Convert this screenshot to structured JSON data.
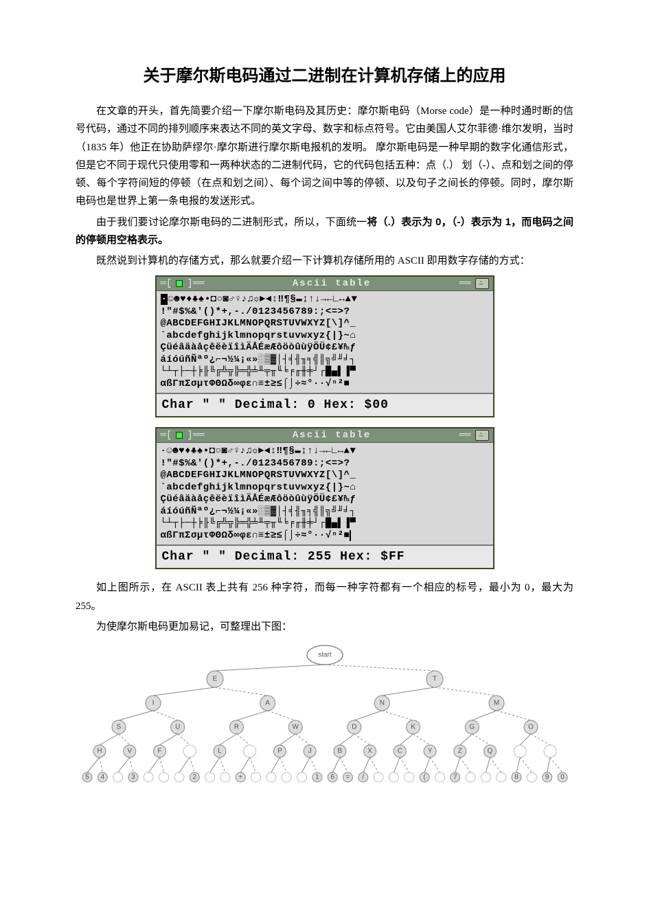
{
  "title": "关于摩尔斯电码通过二进制在计算机存储上的应用",
  "para1": "在文章的开头，首先简要介绍一下摩尔斯电码及其历史：摩尔斯电码（Morse code）是一种时通时断的信号代码，通过不同的排列顺序来表达不同的英文字母、数字和标点符号。它由美国人艾尔菲德·维尔发明，当时（1835 年）他正在协助萨缪尔·摩尔斯进行摩尔斯电报机的发明。 摩尔斯电码是一种早期的数字化通信形式，但是它不同于现代只使用零和一两种状态的二进制代码，它的代码包括五种：点（.） 划（-）、点和划之间的停顿、每个字符间短的停顿（在点和划之间）、每个词之间中等的停顿、以及句子之间长的停顿。同时，摩尔斯电码也是世界上第一条电报的发送形式。",
  "para2a": "由于我们要讨论摩尔斯电码的二进制形式，所以，下面统一",
  "para2b": "将（.）表示为 0，（-）表示为 1，而电码之间的停顿用空格表示。",
  "para3": "既然说到计算机的存储方式，那么就要介绍一下计算机存储所用的 ASCII 即用数字存储的方式：",
  "ascii": {
    "title": "Ascii table",
    "rows": {
      "r1": "☺☻♥♦♣♠•◘○◙♂♀♪♫☼►◄↕‼¶§▬↨↑↓→←∟↔▲▼",
      "r2": "!\"#$%&'()*+,-./0123456789:;<=>?",
      "r3": "@ABCDEFGHIJKLMNOPQRSTUVWXYZ[\\]^_",
      "r4": "`abcdefghijklmnopqrstuvwxyz{|}~⌂",
      "r5": "ÇüéâäàåçêëèïîìÄÅÉæÆôöòûùÿÖÜ¢£¥₧ƒ",
      "r6": "áíóúñÑªº¿⌐¬½¼¡«»░▒▓│┤╡╢╖╕╣║╗╝╜╛┐",
      "r7": "└┴┬├─┼╞╟╚╔╩╦╠═╬╧╨╤╥╙╘╒╓╫╪┘┌█▄▌▐▀",
      "r8": "αßΓπΣσµτΦΘΩδ∞φε∩≡±≥≤⌠⌡÷≈°∙·√ⁿ²■ "
    },
    "status0": "Char \" \" Decimal:   0 Hex: $00",
    "status255": "Char \" \" Decimal: 255 Hex: $FF",
    "highlight0_index": 0,
    "highlight255_index": 31
  },
  "para4": "如上图所示，在 ASCII 表上共有 256 种字符，而每一种字符都有一个相应的标号，最小为 0，最大为 255。",
  "para5": "为使摩尔斯电码更加易记，可整理出下图：",
  "tree": {
    "start": "start",
    "node_color": "#dcdcdc",
    "stroke_color": "#888888",
    "empty_fill": "#ffffff",
    "levels": {
      "l1": [
        "E",
        "T"
      ],
      "l2": [
        "I",
        "A",
        "N",
        "M"
      ],
      "l3": [
        "S",
        "U",
        "R",
        "W",
        "D",
        "K",
        "G",
        "O"
      ],
      "l4": [
        "H",
        "V",
        "F",
        "",
        "L",
        "",
        "P",
        "J",
        "B",
        "X",
        "C",
        "Y",
        "Z",
        "Q",
        "",
        ""
      ],
      "l5": [
        "5",
        "4",
        "",
        "3",
        "",
        "",
        "",
        "2",
        "",
        "",
        "+",
        "",
        "",
        "",
        "",
        "1",
        "6",
        "=",
        "/",
        "",
        "",
        "",
        "(",
        "",
        "7",
        "",
        "",
        "",
        "8",
        "",
        "9",
        "0"
      ]
    }
  }
}
